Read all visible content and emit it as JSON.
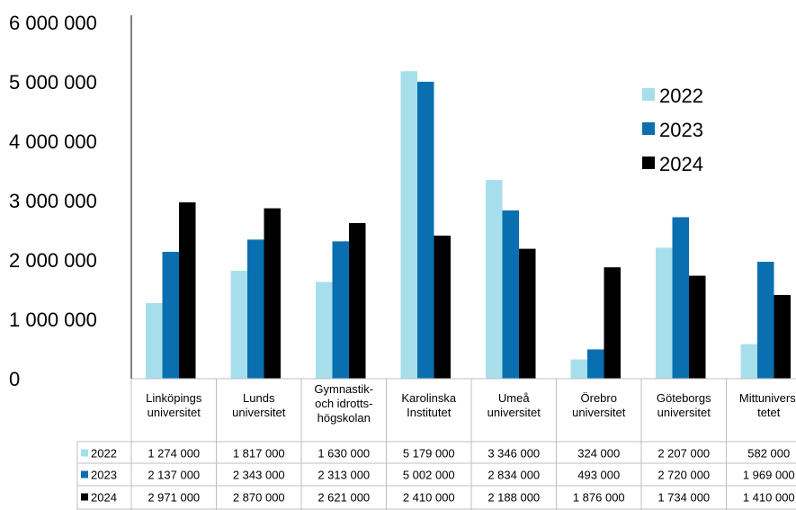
{
  "chart_data": {
    "type": "bar",
    "ylim": [
      0,
      6000000
    ],
    "yticks": [
      "0",
      "1 000 000",
      "2 000 000",
      "3 000 000",
      "4 000 000",
      "5 000 000",
      "6 000 000"
    ],
    "ytick_values": [
      0,
      1000000,
      2000000,
      3000000,
      4000000,
      5000000,
      6000000
    ],
    "grid": false,
    "legend_position": "right",
    "categories": [
      [
        "Linköpings",
        "universitet"
      ],
      [
        "Lunds",
        "universitet"
      ],
      [
        "Gymnastik-",
        "och idrotts-",
        "högskolan"
      ],
      [
        "Karolinska",
        "Institutet"
      ],
      [
        "Umeå",
        "universitet"
      ],
      [
        "Örebro",
        "universitet"
      ],
      [
        "Göteborgs",
        "universitet"
      ],
      [
        "Mittuniversi",
        "tetet"
      ]
    ],
    "series": [
      {
        "name": "2022",
        "color": "#a6dfeb",
        "values": [
          1274000,
          1817000,
          1630000,
          5179000,
          3346000,
          324000,
          2207000,
          582000
        ],
        "labels": [
          "1 274 000",
          "1 817 000",
          "1 630 000",
          "5 179 000",
          "3 346 000",
          "324 000",
          "2 207 000",
          "582 000"
        ]
      },
      {
        "name": "2023",
        "color": "#0a6fb0",
        "values": [
          2137000,
          2343000,
          2313000,
          5002000,
          2834000,
          493000,
          2720000,
          1969000
        ],
        "labels": [
          "2 137 000",
          "2 343 000",
          "2 313 000",
          "5 002 000",
          "2 834 000",
          "493 000",
          "2 720 000",
          "1 969 000"
        ]
      },
      {
        "name": "2024",
        "color": "#000000",
        "values": [
          2971000,
          2870000,
          2621000,
          2410000,
          2188000,
          1876000,
          1734000,
          1410000
        ],
        "labels": [
          "2 971 000",
          "2 870 000",
          "2 621 000",
          "2 410 000",
          "2 188 000",
          "1 876 000",
          "1 734 000",
          "1 410 000"
        ]
      }
    ]
  }
}
